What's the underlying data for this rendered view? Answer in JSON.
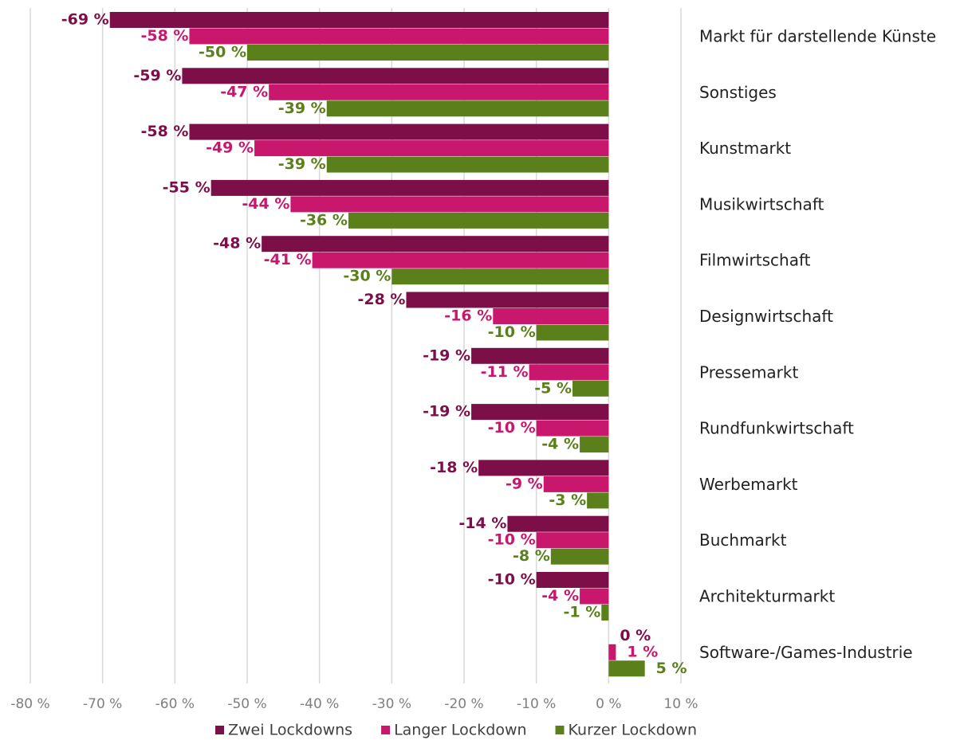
{
  "chart_data": {
    "type": "bar",
    "orientation": "horizontal",
    "categories": [
      "Markt für darstellende Künste",
      "Sonstiges",
      "Kunstmarkt",
      "Musikwirtschaft",
      "Filmwirtschaft",
      "Designwirtschaft",
      "Pressemarkt",
      "Rundfunkwirtschaft",
      "Werbemarkt",
      "Buchmarkt",
      "Architekturmarkt",
      "Software-/Games-Industrie"
    ],
    "series": [
      {
        "name": "Zwei Lockdowns",
        "color": "#7d0f48",
        "values": [
          -69,
          -59,
          -58,
          -55,
          -48,
          -28,
          -19,
          -19,
          -18,
          -14,
          -10,
          0
        ],
        "value_labels": [
          "-69 %",
          "-59 %",
          "-58 %",
          "-55 %",
          "-48 %",
          "-28 %",
          "-19 %",
          "-19 %",
          "-18 %",
          "-14 %",
          "-10 %",
          "0 %"
        ]
      },
      {
        "name": "Langer Lockdown",
        "color": "#c8176d",
        "values": [
          -58,
          -47,
          -49,
          -44,
          -41,
          -16,
          -11,
          -10,
          -9,
          -10,
          -4,
          1
        ],
        "value_labels": [
          "-58 %",
          "-47 %",
          "-49 %",
          "-44 %",
          "-41 %",
          "-16 %",
          "-11 %",
          "-10 %",
          "-9 %",
          "-10 %",
          "-4 %",
          "1 %"
        ]
      },
      {
        "name": "Kurzer Lockdown",
        "color": "#5b7f1b",
        "values": [
          -50,
          -39,
          -39,
          -36,
          -30,
          -10,
          -5,
          -4,
          -3,
          -8,
          -1,
          5
        ],
        "value_labels": [
          "-50 %",
          "-39 %",
          "-39 %",
          "-36 %",
          "-30 %",
          "-10 %",
          "-5 %",
          "-4 %",
          "-3 %",
          "-8 %",
          "-1 %",
          "5 %"
        ]
      }
    ],
    "xlim": [
      -80,
      10
    ],
    "xticks": [
      {
        "value": -80,
        "label": "-80 %"
      },
      {
        "value": -70,
        "label": "-70 %"
      },
      {
        "value": -60,
        "label": "-60 %"
      },
      {
        "value": -50,
        "label": "-50 %"
      },
      {
        "value": -40,
        "label": "-40 %"
      },
      {
        "value": -30,
        "label": "-30 %"
      },
      {
        "value": -20,
        "label": "-20 %"
      },
      {
        "value": -10,
        "label": "-10 %"
      },
      {
        "value": 0,
        "label": "0 %"
      },
      {
        "value": 10,
        "label": "10 %"
      }
    ],
    "grid": true,
    "legend": "bottom"
  }
}
